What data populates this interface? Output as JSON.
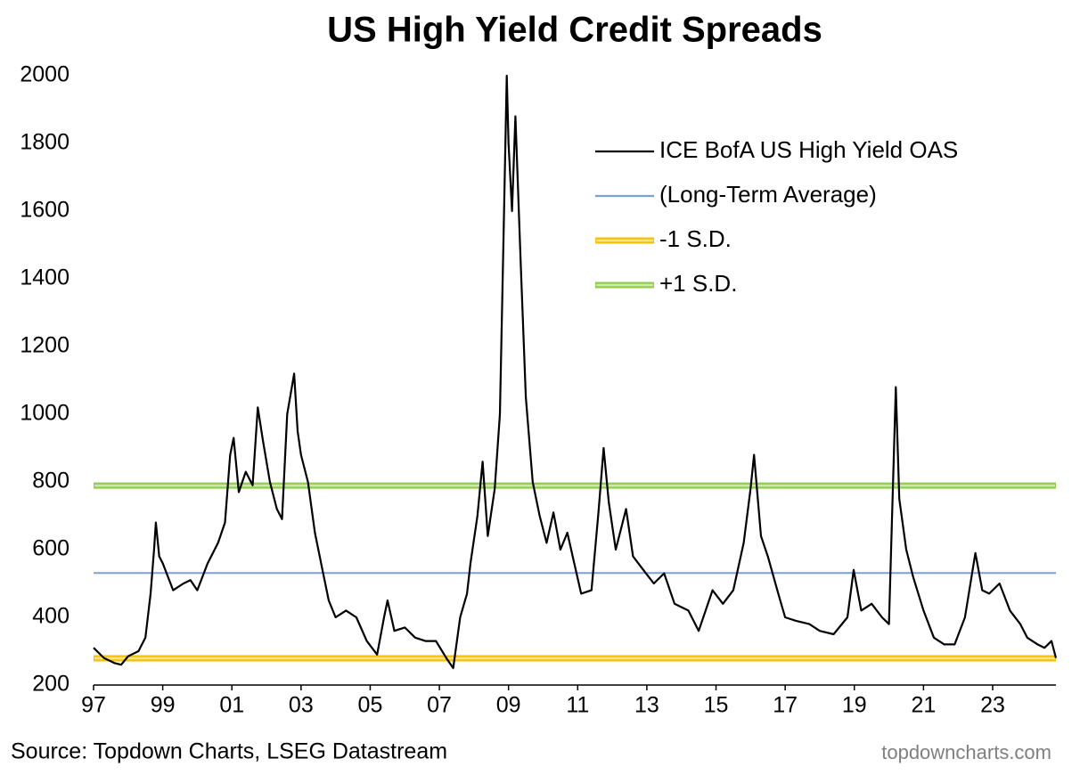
{
  "chart_data": {
    "type": "line",
    "title": "US High Yield Credit Spreads",
    "source": "Source: Topdown Charts, LSEG Datastream",
    "watermark": "topdowncharts.com",
    "xlim": [
      1997,
      2024.83
    ],
    "xticks": [
      {
        "value": 1997,
        "label": "97"
      },
      {
        "value": 1999,
        "label": "99"
      },
      {
        "value": 2001,
        "label": "01"
      },
      {
        "value": 2003,
        "label": "03"
      },
      {
        "value": 2005,
        "label": "05"
      },
      {
        "value": 2007,
        "label": "07"
      },
      {
        "value": 2009,
        "label": "09"
      },
      {
        "value": 2011,
        "label": "11"
      },
      {
        "value": 2013,
        "label": "13"
      },
      {
        "value": 2015,
        "label": "15"
      },
      {
        "value": 2017,
        "label": "17"
      },
      {
        "value": 2019,
        "label": "19"
      },
      {
        "value": 2021,
        "label": "21"
      },
      {
        "value": 2023,
        "label": "23"
      }
    ],
    "ylim": [
      200,
      2000
    ],
    "yticks": [
      200,
      400,
      600,
      800,
      1000,
      1200,
      1400,
      1600,
      1800,
      2000
    ],
    "x": [
      1997.0,
      1997.3,
      1997.6,
      1997.8,
      1998.0,
      1998.3,
      1998.5,
      1998.65,
      1998.75,
      1998.8,
      1998.9,
      1999.0,
      1999.3,
      1999.6,
      1999.8,
      2000.0,
      2000.3,
      2000.6,
      2000.8,
      2000.95,
      2001.05,
      2001.2,
      2001.4,
      2001.6,
      2001.75,
      2001.9,
      2002.1,
      2002.3,
      2002.45,
      2002.6,
      2002.8,
      2002.9,
      2003.0,
      2003.2,
      2003.4,
      2003.6,
      2003.8,
      2004.0,
      2004.3,
      2004.6,
      2004.9,
      2005.2,
      2005.4,
      2005.5,
      2005.7,
      2006.0,
      2006.3,
      2006.6,
      2006.9,
      2007.2,
      2007.4,
      2007.6,
      2007.8,
      2007.9,
      2008.1,
      2008.25,
      2008.4,
      2008.6,
      2008.75,
      2008.85,
      2008.95,
      2009.0,
      2009.1,
      2009.2,
      2009.35,
      2009.5,
      2009.7,
      2009.9,
      2010.1,
      2010.3,
      2010.5,
      2010.7,
      2010.9,
      2011.1,
      2011.4,
      2011.6,
      2011.75,
      2011.9,
      2012.1,
      2012.4,
      2012.6,
      2012.9,
      2013.2,
      2013.5,
      2013.8,
      2014.2,
      2014.5,
      2014.9,
      2015.2,
      2015.5,
      2015.8,
      2016.0,
      2016.1,
      2016.3,
      2016.5,
      2016.8,
      2017.0,
      2017.3,
      2017.7,
      2018.0,
      2018.4,
      2018.8,
      2018.98,
      2019.2,
      2019.5,
      2019.8,
      2020.0,
      2020.2,
      2020.3,
      2020.5,
      2020.7,
      2021.0,
      2021.3,
      2021.6,
      2021.9,
      2022.2,
      2022.5,
      2022.7,
      2022.9,
      2023.2,
      2023.5,
      2023.8,
      2024.0,
      2024.3,
      2024.5,
      2024.7,
      2024.83
    ],
    "series": [
      {
        "name": "ICE BofA US High Yield OAS",
        "color": "#000000",
        "values": [
          310,
          280,
          265,
          260,
          285,
          300,
          340,
          470,
          600,
          680,
          580,
          560,
          480,
          500,
          510,
          480,
          560,
          620,
          680,
          880,
          930,
          770,
          830,
          790,
          1020,
          920,
          800,
          720,
          690,
          1000,
          1120,
          950,
          880,
          800,
          650,
          550,
          450,
          400,
          420,
          400,
          330,
          290,
          400,
          450,
          360,
          370,
          340,
          330,
          330,
          280,
          250,
          400,
          470,
          560,
          700,
          860,
          640,
          780,
          1000,
          1500,
          2000,
          1800,
          1600,
          1880,
          1450,
          1050,
          800,
          700,
          620,
          710,
          600,
          650,
          560,
          470,
          480,
          710,
          900,
          740,
          600,
          720,
          580,
          540,
          500,
          530,
          440,
          420,
          360,
          480,
          440,
          480,
          620,
          780,
          880,
          640,
          580,
          470,
          400,
          390,
          380,
          360,
          350,
          400,
          540,
          420,
          440,
          400,
          380,
          1080,
          750,
          600,
          520,
          420,
          340,
          320,
          320,
          400,
          590,
          480,
          470,
          500,
          420,
          380,
          340,
          320,
          310,
          330,
          280
        ]
      }
    ],
    "hlines": [
      {
        "name": "(Long-Term Average)",
        "value": 531,
        "color": "#7f9fd0"
      },
      {
        "name": "-1 S.D.",
        "value": 279,
        "color": "#f2c200"
      },
      {
        "name": "+1 S.D.",
        "value": 789,
        "color": "#8fce4a"
      }
    ]
  }
}
